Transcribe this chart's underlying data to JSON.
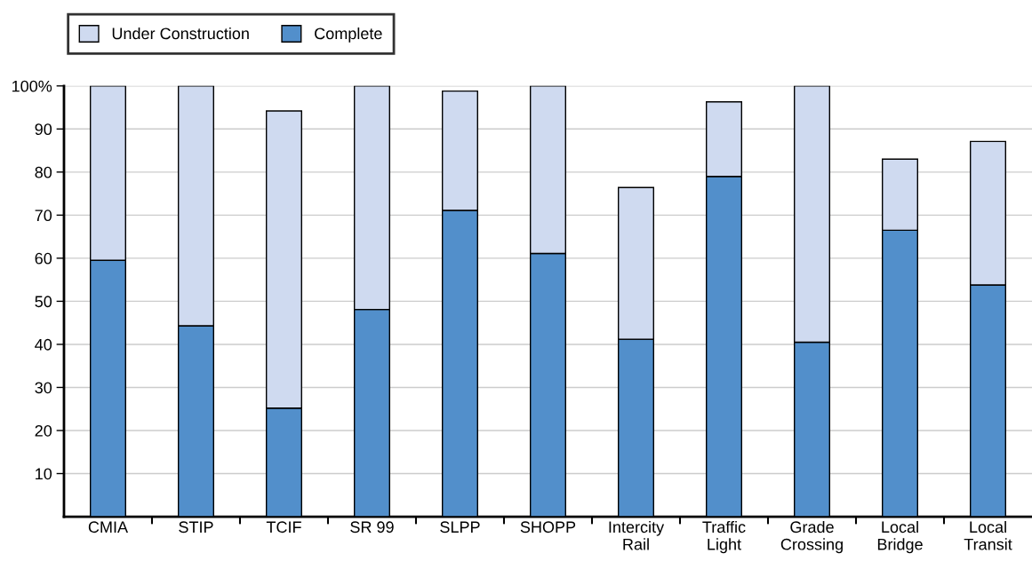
{
  "chart_data": {
    "type": "bar",
    "stacked": true,
    "categories": [
      "CMIA",
      "STIP",
      "TCIF",
      "SR 99",
      "SLPP",
      "SHOPP",
      "Intercity\nRail",
      "Traffic\nLight",
      "Grade\nCrossing",
      "Local\nBridge",
      "Local\nTransit"
    ],
    "series": [
      {
        "name": "Complete",
        "color": "#528fcb",
        "values": [
          59.5,
          44.3,
          25.2,
          48.1,
          71.1,
          61.1,
          41.2,
          79.0,
          40.5,
          66.5,
          53.8
        ]
      },
      {
        "name": "Under Construction",
        "color": "#cfdaf0",
        "values": [
          40.5,
          55.7,
          69.0,
          51.9,
          27.7,
          38.9,
          35.2,
          17.3,
          59.5,
          16.5,
          33.3
        ]
      }
    ],
    "ylim": [
      0,
      100
    ],
    "yticks": [
      10,
      20,
      30,
      40,
      50,
      60,
      70,
      80,
      90,
      {
        "value": 100,
        "label": "100%"
      }
    ],
    "grid": "y",
    "legend": "top left"
  }
}
